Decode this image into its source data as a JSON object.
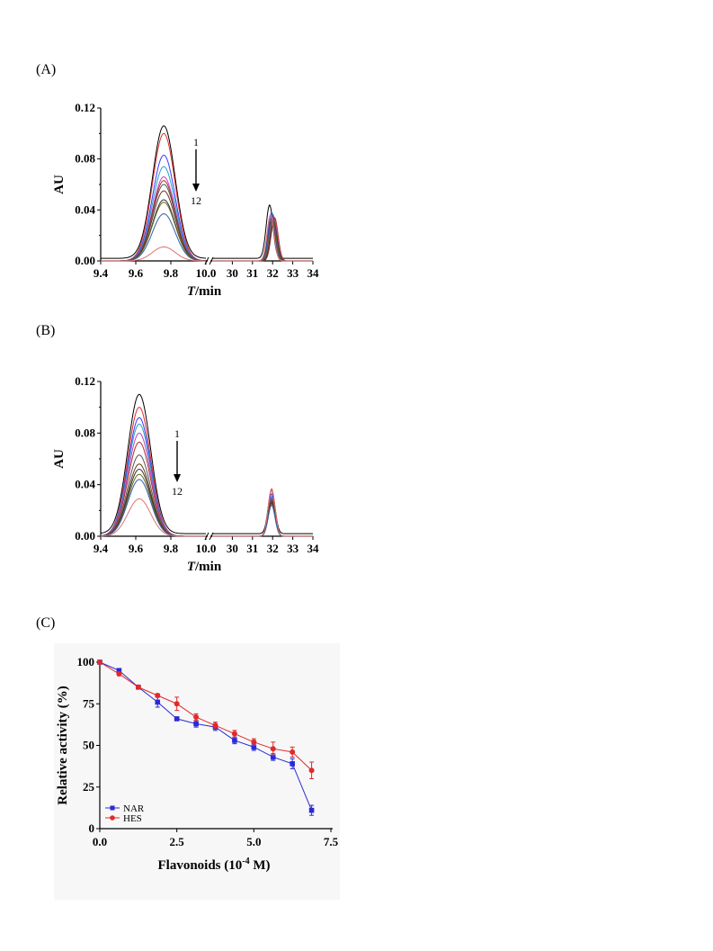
{
  "chart_data": [
    {
      "type": "line",
      "panel": "(A)",
      "ylabel": "AU",
      "xlabel_italic": "T",
      "xlabel_rest": "/min",
      "ylim": [
        0,
        0.12
      ],
      "yticks": [
        "0.00",
        "0.04",
        "0.08",
        "0.12"
      ],
      "x_segments": [
        {
          "range": [
            9.4,
            10.0
          ],
          "ticks": [
            "9.4",
            "9.6",
            "9.8",
            "10.0"
          ]
        },
        {
          "range": [
            29,
            34
          ],
          "ticks": [
            "30",
            "31",
            "32",
            "33",
            "34"
          ]
        }
      ],
      "arrow_labels": [
        "1",
        "12"
      ],
      "peak1_x": 9.76,
      "peak1_heights": [
        0.104,
        0.1,
        0.083,
        0.074,
        0.066,
        0.063,
        0.06,
        0.055,
        0.048,
        0.046,
        0.037,
        0.011
      ],
      "peak2_x": [
        31.85,
        31.9,
        31.95,
        32.0,
        32.05,
        32.1,
        32.0,
        31.95,
        32.05,
        32.0,
        31.95,
        31.9
      ],
      "peak2_heights": [
        0.042,
        0.036,
        0.038,
        0.037,
        0.035,
        0.034,
        0.036,
        0.033,
        0.03,
        0.032,
        0.031,
        0.036
      ],
      "series_colors": [
        "#000000",
        "#e0302a",
        "#3a3aff",
        "#2aa0c8",
        "#c040c0",
        "#b03030",
        "#555555",
        "#6a3a20",
        "#333333",
        "#6b6b20",
        "#3060b0",
        "#e07070"
      ]
    },
    {
      "type": "line",
      "panel": "(B)",
      "ylabel": "AU",
      "xlabel_italic": "T",
      "xlabel_rest": "/min",
      "ylim": [
        0,
        0.12
      ],
      "yticks": [
        "0.00",
        "0.04",
        "0.08",
        "0.12"
      ],
      "x_segments": [
        {
          "range": [
            9.4,
            10.0
          ],
          "ticks": [
            "9.4",
            "9.6",
            "9.8",
            "10.0"
          ]
        },
        {
          "range": [
            29,
            34
          ],
          "ticks": [
            "30",
            "31",
            "32",
            "33",
            "34"
          ]
        }
      ],
      "arrow_labels": [
        "1",
        "12"
      ],
      "peak1_x": 9.62,
      "peak1_heights": [
        0.108,
        0.1,
        0.092,
        0.087,
        0.08,
        0.073,
        0.063,
        0.056,
        0.052,
        0.048,
        0.044,
        0.029
      ],
      "peak2_x": [
        31.95,
        31.95,
        31.95,
        31.95,
        31.95,
        31.95,
        31.95,
        31.95,
        31.95,
        31.95,
        31.95,
        31.95
      ],
      "peak2_heights": [
        0.034,
        0.036,
        0.033,
        0.031,
        0.03,
        0.029,
        0.028,
        0.027,
        0.026,
        0.025,
        0.024,
        0.037
      ],
      "series_colors": [
        "#000000",
        "#e0302a",
        "#3a3aff",
        "#2aa0c8",
        "#c040c0",
        "#b03030",
        "#555555",
        "#6a3a20",
        "#333333",
        "#6b6b20",
        "#3060b0",
        "#e07070"
      ]
    },
    {
      "type": "line",
      "panel": "(C)",
      "xlabel": "Flavonoids (10",
      "xlabel_sup": "-4",
      "xlabel_end": " M)",
      "ylabel": "Relative activity (%)",
      "xlim": [
        0,
        7.5
      ],
      "ylim": [
        0,
        100
      ],
      "xticks": [
        "0.0",
        "2.5",
        "5.0",
        "7.5"
      ],
      "yticks": [
        "0",
        "25",
        "50",
        "75",
        "100"
      ],
      "x": [
        0,
        0.625,
        1.25,
        1.875,
        2.5,
        3.125,
        3.75,
        4.375,
        5.0,
        5.625,
        6.25,
        6.875
      ],
      "series": [
        {
          "name": "NAR",
          "color": "#2a2ad8",
          "marker": "square",
          "values": [
            100,
            95,
            85,
            76,
            66,
            63,
            61,
            53,
            49,
            43,
            39,
            11
          ],
          "errors": [
            0,
            1,
            1,
            3,
            1,
            2,
            2,
            2,
            2,
            2,
            3,
            3
          ]
        },
        {
          "name": "HES",
          "color": "#e02a2a",
          "marker": "circle",
          "values": [
            100,
            93,
            85,
            80,
            75,
            67,
            62,
            57,
            52,
            48,
            46,
            35
          ],
          "errors": [
            0,
            1,
            1,
            1,
            4,
            2,
            2,
            2,
            2,
            4,
            3,
            5
          ]
        }
      ]
    }
  ]
}
